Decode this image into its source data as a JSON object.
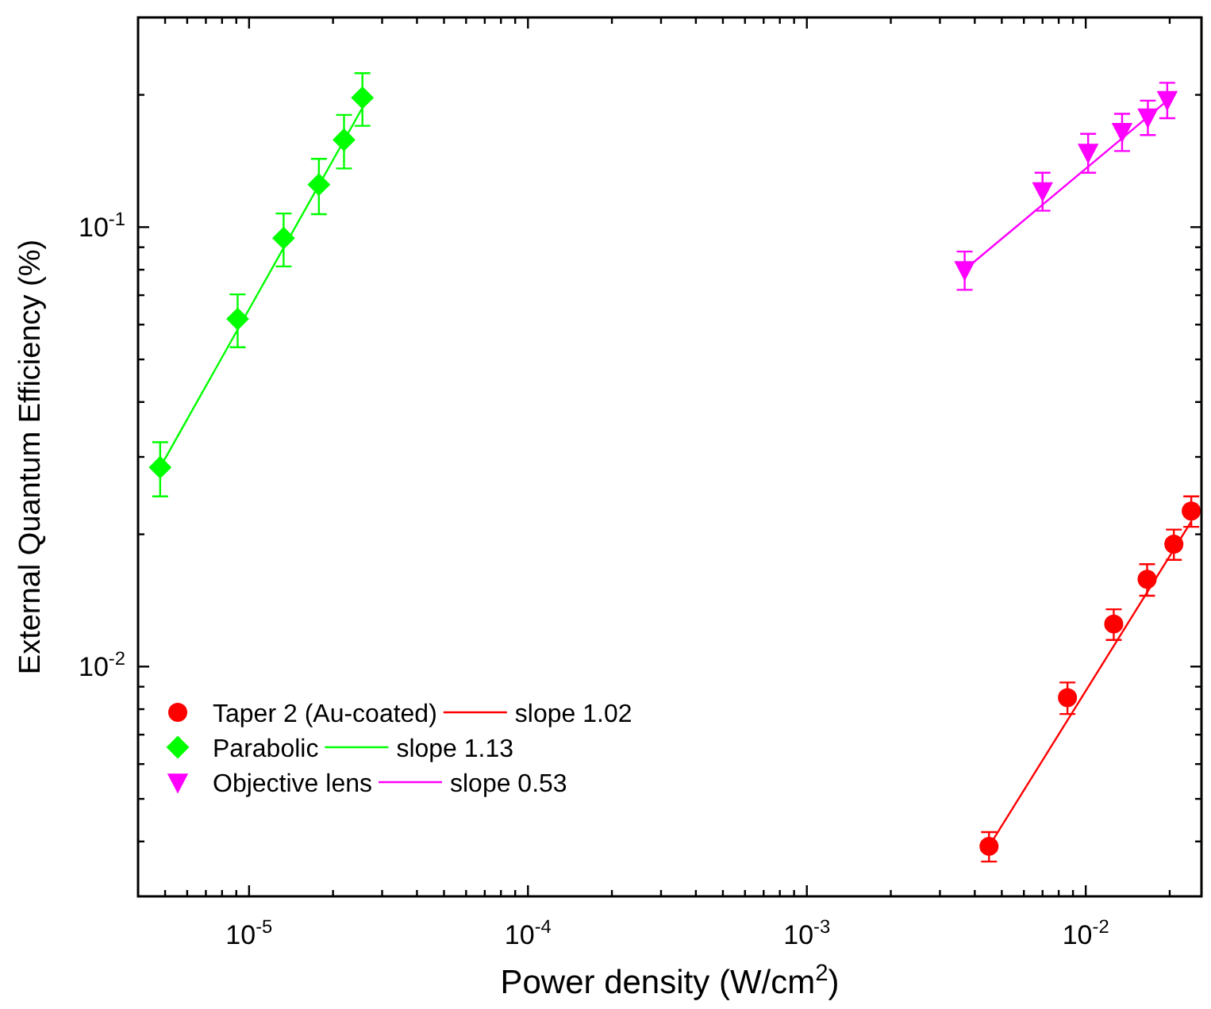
{
  "chart_data": {
    "type": "scatter",
    "xlabel": "Power density (W/cm$^{2}$)",
    "ylabel": "External Quantum Efficiency (%)",
    "log": "xy",
    "legend": "bottom left",
    "xlim": [
      4e-06,
      0.026
    ],
    "ylim": [
      0.003,
      0.3
    ],
    "xticks": [
      {
        "value": 5e-06,
        "label": null
      },
      {
        "value": 6e-06,
        "label": null
      },
      {
        "value": 7e-06,
        "label": null
      },
      {
        "value": 8e-06,
        "label": null
      },
      {
        "value": 9e-06,
        "label": null
      },
      {
        "value": 1e-05,
        "label": "10$^{-5}$"
      },
      {
        "value": 2e-05,
        "label": null
      },
      {
        "value": 3e-05,
        "label": null
      },
      {
        "value": 4e-05,
        "label": null
      },
      {
        "value": 5e-05,
        "label": null
      },
      {
        "value": 6e-05,
        "label": null
      },
      {
        "value": 7e-05,
        "label": null
      },
      {
        "value": 8e-05,
        "label": null
      },
      {
        "value": 9e-05,
        "label": null
      },
      {
        "value": 0.0001,
        "label": "10$^{-4}$"
      },
      {
        "value": 0.0002,
        "label": null
      },
      {
        "value": 0.0003,
        "label": null
      },
      {
        "value": 0.0004,
        "label": null
      },
      {
        "value": 0.0005,
        "label": null
      },
      {
        "value": 0.0006,
        "label": null
      },
      {
        "value": 0.0007,
        "label": null
      },
      {
        "value": 0.0008,
        "label": null
      },
      {
        "value": 0.0009,
        "label": null
      },
      {
        "value": 0.001,
        "label": "10$^{-3}$"
      },
      {
        "value": 0.002,
        "label": null
      },
      {
        "value": 0.003,
        "label": null
      },
      {
        "value": 0.004,
        "label": null
      },
      {
        "value": 0.005,
        "label": null
      },
      {
        "value": 0.006,
        "label": null
      },
      {
        "value": 0.007,
        "label": null
      },
      {
        "value": 0.008,
        "label": null
      },
      {
        "value": 0.009,
        "label": null
      },
      {
        "value": 0.01,
        "label": "10$^{-2}$"
      },
      {
        "value": 0.02,
        "label": null
      }
    ],
    "yticks": [
      {
        "value": 0.004,
        "label": null
      },
      {
        "value": 0.005,
        "label": null
      },
      {
        "value": 0.006,
        "label": null
      },
      {
        "value": 0.007,
        "label": null
      },
      {
        "value": 0.008,
        "label": null
      },
      {
        "value": 0.009,
        "label": null
      },
      {
        "value": 0.01,
        "label": "10$^{-2}$"
      },
      {
        "value": 0.02,
        "label": null
      },
      {
        "value": 0.03,
        "label": null
      },
      {
        "value": 0.04,
        "label": null
      },
      {
        "value": 0.05,
        "label": null
      },
      {
        "value": 0.06,
        "label": null
      },
      {
        "value": 0.07,
        "label": null
      },
      {
        "value": 0.08,
        "label": null
      },
      {
        "value": 0.09,
        "label": null
      },
      {
        "value": 0.1,
        "label": "10$^{-1}$"
      },
      {
        "value": 0.2,
        "label": null
      }
    ],
    "series": [
      {
        "name": "Taper 2 (Au-coated)",
        "marker": "circle",
        "color": "#ff0000",
        "x": [
          0.0045,
          0.0086,
          0.0126,
          0.0166,
          0.0207,
          0.0239
        ],
        "values": [
          0.0039,
          0.0085,
          0.0125,
          0.0158,
          0.019,
          0.0226
        ],
        "errors": [
          0.0003,
          0.0007,
          0.001,
          0.0013,
          0.0015,
          0.0018
        ]
      },
      {
        "name": "Parabolic",
        "marker": "diamond",
        "color": "#00ff00",
        "x": [
          4.8e-06,
          9.1e-06,
          1.33e-05,
          1.78e-05,
          2.19e-05,
          2.55e-05
        ],
        "values": [
          0.0284,
          0.0618,
          0.0944,
          0.125,
          0.158,
          0.197
        ],
        "errors": [
          0.004,
          0.0085,
          0.013,
          0.018,
          0.022,
          0.027
        ]
      },
      {
        "name": "Objective lens",
        "marker": "triangle",
        "color": "#ff00ff",
        "x": [
          0.00368,
          0.007,
          0.0102,
          0.0135,
          0.0167,
          0.0196
        ],
        "values": [
          0.08,
          0.121,
          0.148,
          0.165,
          0.178,
          0.195
        ],
        "errors": [
          0.008,
          0.012,
          0.015,
          0.016,
          0.016,
          0.018
        ]
      },
      {
        "name": "slope 1.02",
        "type": "line",
        "color": "#ff0000",
        "x": [
          0.0045,
          0.0239
        ],
        "values": [
          0.0039,
          0.0214
        ]
      },
      {
        "name": "slope 1.13",
        "type": "line",
        "color": "#00ff00",
        "x": [
          4.8e-06,
          2.55e-05
        ],
        "values": [
          0.0284,
          0.187
        ]
      },
      {
        "name": "slope 0.53",
        "type": "line",
        "color": "#ff00ff",
        "x": [
          0.00368,
          0.0196
        ],
        "values": [
          0.08,
          0.194
        ]
      }
    ]
  }
}
